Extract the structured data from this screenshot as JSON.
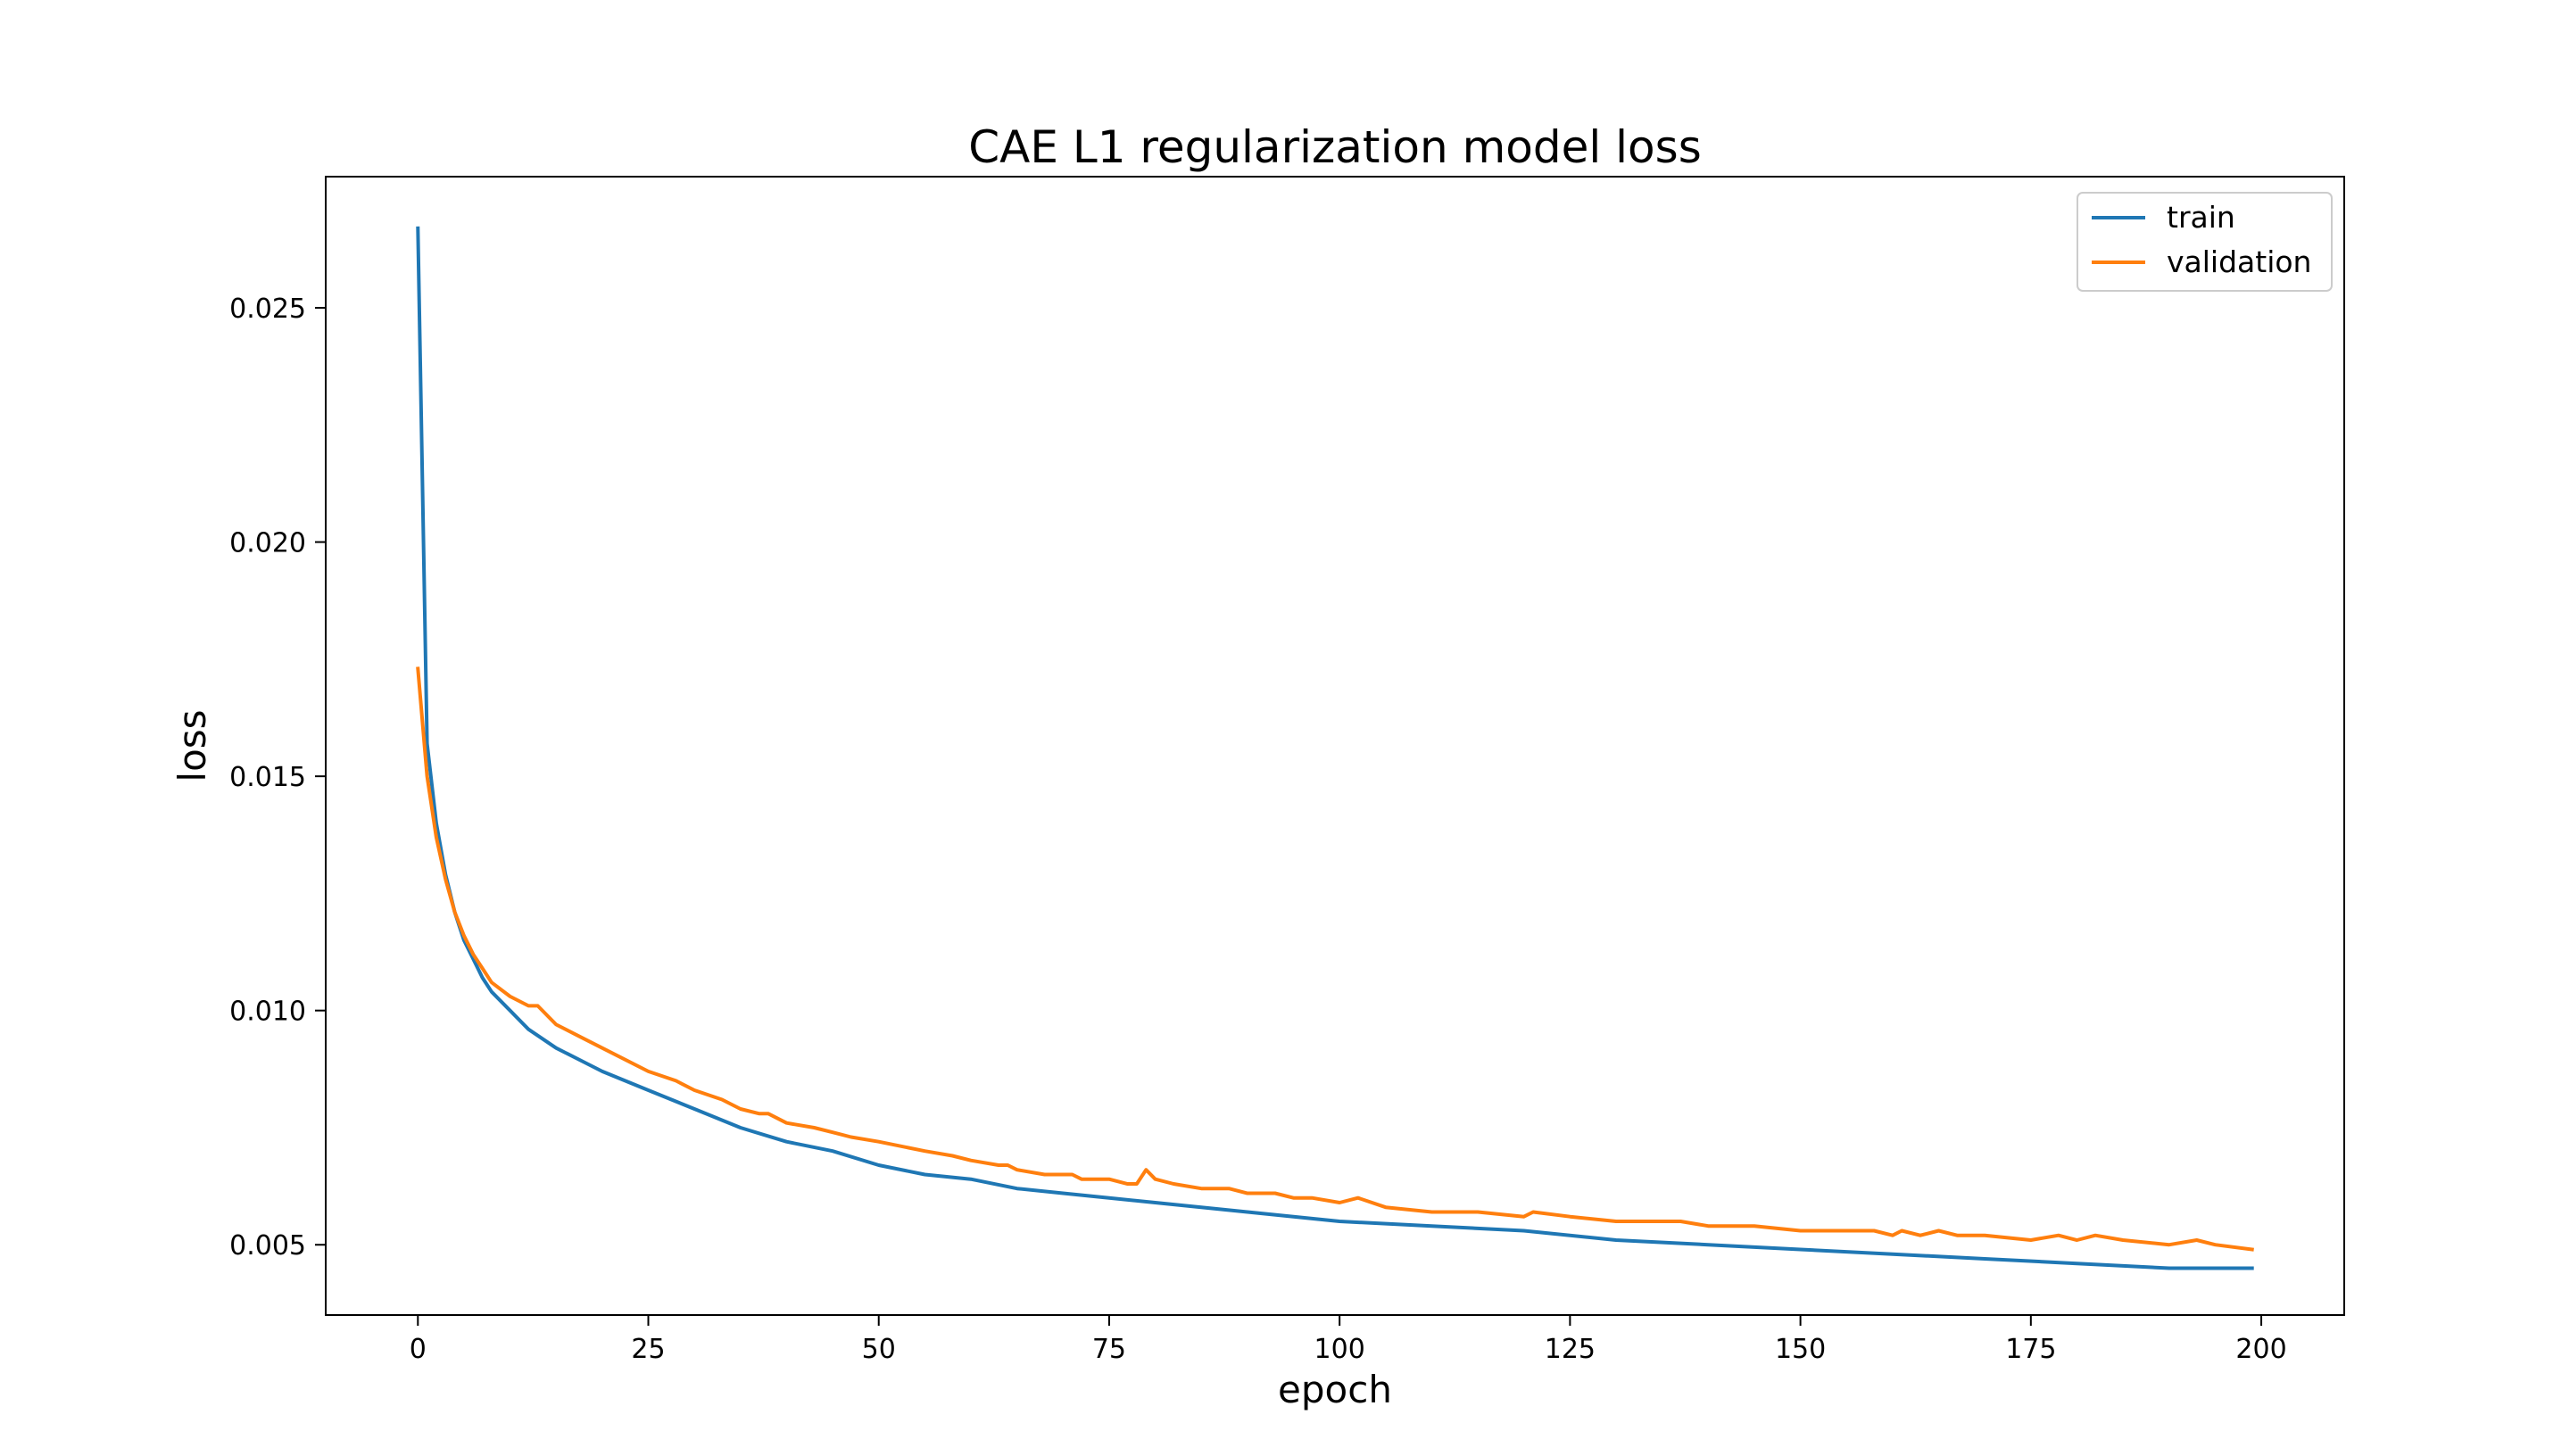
{
  "chart_data": {
    "type": "line",
    "title": "CAE L1 regularization model loss",
    "xlabel": "epoch",
    "ylabel": "loss",
    "xlim": [
      -10,
      209
    ],
    "ylim": [
      0.0035,
      0.0278
    ],
    "xticks": [
      0,
      25,
      50,
      75,
      100,
      125,
      150,
      175,
      200
    ],
    "xtick_labels": [
      "0",
      "25",
      "50",
      "75",
      "100",
      "125",
      "150",
      "175",
      "200"
    ],
    "yticks": [
      0.005,
      0.01,
      0.015,
      0.02,
      0.025
    ],
    "ytick_labels": [
      "0.005",
      "0.010",
      "0.015",
      "0.020",
      "0.025"
    ],
    "grid": false,
    "legend_position": "top-right",
    "series": [
      {
        "name": "train",
        "color": "#1f77b4",
        "x": [
          0,
          1,
          2,
          3,
          4,
          5,
          6,
          7,
          8,
          10,
          12,
          15,
          18,
          20,
          25,
          30,
          35,
          40,
          45,
          50,
          55,
          60,
          65,
          70,
          75,
          80,
          85,
          90,
          95,
          100,
          110,
          120,
          130,
          140,
          150,
          160,
          170,
          180,
          190,
          199
        ],
        "y": [
          0.0267,
          0.0157,
          0.014,
          0.0129,
          0.0121,
          0.0115,
          0.0111,
          0.0107,
          0.0104,
          0.01,
          0.0096,
          0.0092,
          0.0089,
          0.0087,
          0.0083,
          0.0079,
          0.0075,
          0.0072,
          0.007,
          0.0067,
          0.0065,
          0.0064,
          0.0062,
          0.0061,
          0.006,
          0.0059,
          0.0058,
          0.0057,
          0.0056,
          0.0055,
          0.0054,
          0.0053,
          0.0051,
          0.005,
          0.0049,
          0.0048,
          0.0047,
          0.0046,
          0.0045,
          0.0045
        ]
      },
      {
        "name": "validation",
        "color": "#ff7f0e",
        "x": [
          0,
          1,
          2,
          3,
          4,
          5,
          6,
          7,
          8,
          10,
          12,
          13,
          15,
          18,
          20,
          25,
          28,
          30,
          33,
          35,
          37,
          38,
          40,
          43,
          45,
          47,
          50,
          55,
          58,
          60,
          63,
          64,
          65,
          68,
          70,
          71,
          72,
          75,
          77,
          78,
          79,
          80,
          82,
          85,
          88,
          90,
          93,
          95,
          97,
          100,
          102,
          105,
          110,
          115,
          120,
          121,
          125,
          130,
          135,
          137,
          140,
          145,
          150,
          152,
          155,
          158,
          160,
          161,
          163,
          165,
          167,
          170,
          175,
          178,
          180,
          182,
          185,
          190,
          193,
          195,
          199
        ],
        "y": [
          0.0173,
          0.015,
          0.0137,
          0.0128,
          0.0121,
          0.0116,
          0.0112,
          0.0109,
          0.0106,
          0.0103,
          0.0101,
          0.0101,
          0.0097,
          0.0094,
          0.0092,
          0.0087,
          0.0085,
          0.0083,
          0.0081,
          0.0079,
          0.0078,
          0.0078,
          0.0076,
          0.0075,
          0.0074,
          0.0073,
          0.0072,
          0.007,
          0.0069,
          0.0068,
          0.0067,
          0.0067,
          0.0066,
          0.0065,
          0.0065,
          0.0065,
          0.0064,
          0.0064,
          0.0063,
          0.0063,
          0.0066,
          0.0064,
          0.0063,
          0.0062,
          0.0062,
          0.0061,
          0.0061,
          0.006,
          0.006,
          0.0059,
          0.006,
          0.0058,
          0.0057,
          0.0057,
          0.0056,
          0.0057,
          0.0056,
          0.0055,
          0.0055,
          0.0055,
          0.0054,
          0.0054,
          0.0053,
          0.0053,
          0.0053,
          0.0053,
          0.0052,
          0.0053,
          0.0052,
          0.0053,
          0.0052,
          0.0052,
          0.0051,
          0.0052,
          0.0051,
          0.0052,
          0.0051,
          0.005,
          0.0051,
          0.005,
          0.0049
        ]
      }
    ]
  }
}
